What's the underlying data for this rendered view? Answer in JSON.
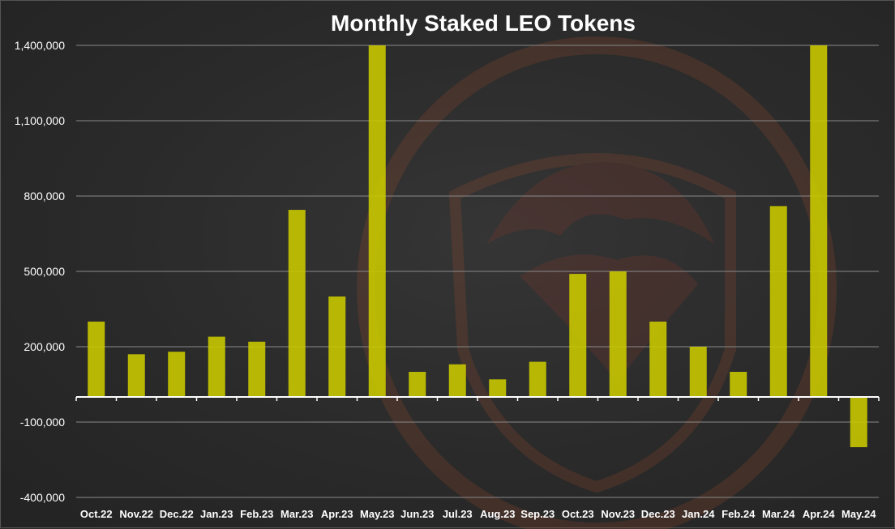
{
  "chart_data": {
    "type": "bar",
    "title": "Monthly Staked LEO Tokens",
    "xlabel": "",
    "ylabel": "",
    "categories": [
      "Oct.22",
      "Nov.22",
      "Dec.22",
      "Jan.23",
      "Feb.23",
      "Mar.23",
      "Apr.23",
      "May.23",
      "Jun.23",
      "Jul.23",
      "Aug.23",
      "Sep.23",
      "Oct.23",
      "Nov.23",
      "Dec.23",
      "Jan.24",
      "Feb.24",
      "Mar.24",
      "Apr.24",
      "May.24"
    ],
    "series": [
      {
        "values": [
          300000,
          170000,
          180000,
          240000,
          220000,
          745000,
          400000,
          1400000,
          100000,
          130000,
          70000,
          140000,
          490000,
          500000,
          300000,
          200000,
          100000,
          760000,
          1400000,
          -200000
        ]
      }
    ],
    "yticks": [
      -400000,
      -100000,
      200000,
      500000,
      800000,
      1100000,
      1400000
    ],
    "ytick_labels": [
      "-400,000",
      "-100,000",
      "200,000",
      "500,000",
      "800,000",
      "1,100,000",
      "1,400,000"
    ],
    "ylim": [
      -400000,
      1400000
    ],
    "grid": true,
    "legend": "none",
    "colors": {
      "bar": "#c8c800",
      "bar_opacity": 0.9,
      "grid": "#8a8a8a",
      "axis": "#ffffff",
      "text": "#ffffff",
      "watermark": "#8a3a2a"
    }
  }
}
